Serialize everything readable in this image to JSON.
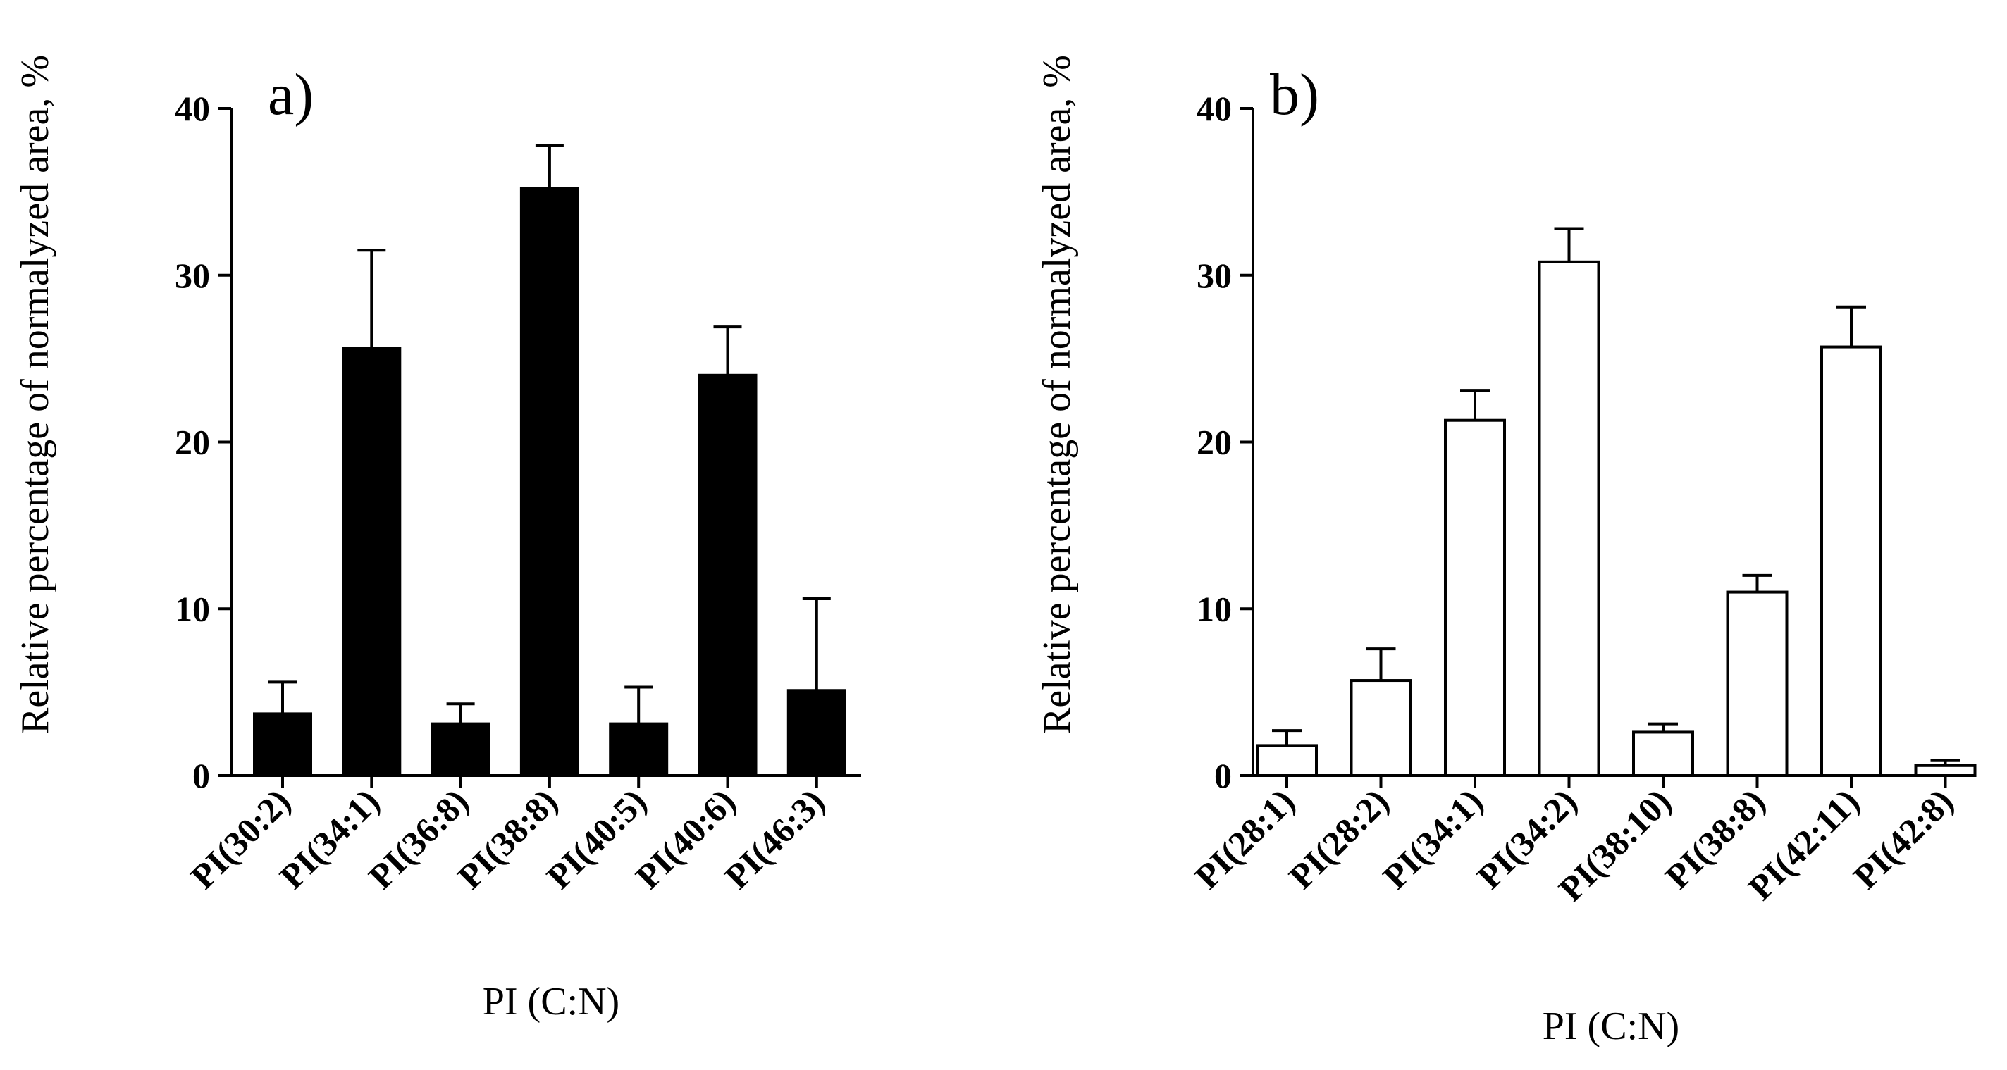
{
  "chart_data": [
    {
      "type": "bar",
      "panel_label": "a)",
      "title": "",
      "xlabel": "PI (C:N)",
      "ylabel": "Relative percentage of normalyzed area, %",
      "ylim": [
        0,
        40
      ],
      "yticks": [
        "0",
        "10",
        "20",
        "30",
        "40"
      ],
      "categories": [
        "PI(30:2)",
        "PI(34:1)",
        "PI(36:8)",
        "PI(38:8)",
        "PI(40:5)",
        "PI(40:6)",
        "PI(46:3)"
      ],
      "values": [
        3.7,
        25.6,
        3.1,
        35.2,
        3.1,
        24.0,
        5.1
      ],
      "error_upper": [
        5.6,
        31.5,
        4.3,
        37.8,
        5.3,
        26.9,
        10.6
      ],
      "fill": "#000000",
      "stroke": "#000000"
    },
    {
      "type": "bar",
      "panel_label": "b)",
      "title": "",
      "xlabel": "PI (C:N)",
      "ylabel": "Relative percentage of normalyzed area, %",
      "ylim": [
        0,
        40
      ],
      "yticks": [
        "0",
        "10",
        "20",
        "30",
        "40"
      ],
      "categories": [
        "PI(28:1)",
        "PI(28:2)",
        "PI(34:1)",
        "PI(34:2)",
        "PI(38:10)",
        "PI(38:8)",
        "PI(42:11)",
        "PI(42:8)"
      ],
      "values": [
        1.8,
        5.7,
        21.3,
        30.8,
        2.6,
        11.0,
        25.7,
        0.6
      ],
      "error_upper": [
        2.7,
        7.6,
        23.1,
        32.8,
        3.1,
        12.0,
        28.1,
        0.9
      ],
      "fill": "#ffffff",
      "stroke": "#000000"
    }
  ]
}
